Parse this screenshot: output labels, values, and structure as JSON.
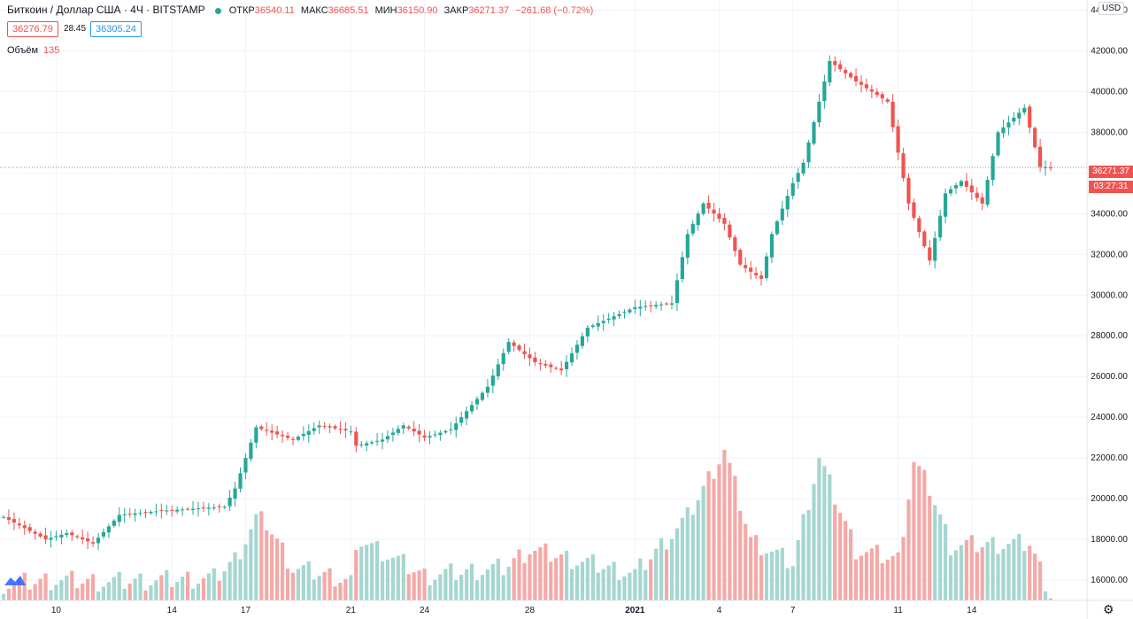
{
  "header": {
    "symbol_title": "Биткоин / Доллар США · 4Ч · BITSTAMP",
    "open_label": "ОТКР",
    "open_value": "36540.11",
    "high_label": "МАКС",
    "high_value": "36685.51",
    "low_label": "МИН",
    "low_value": "36150.90",
    "close_label": "ЗАКР",
    "close_value": "36271.37",
    "change_value": "−261.68 (−0.72%)",
    "bid": "36276.79",
    "spread": "28.45",
    "ask": "36305.24"
  },
  "volume_row": {
    "label": "Объём",
    "value": "135"
  },
  "price_scale": {
    "currency": "USD",
    "last_price": "36271.37",
    "countdown": "03:27:31"
  },
  "colors": {
    "up": "#26a69a",
    "down": "#ef5350",
    "up_vol": "#a5d6d0",
    "down_vol": "#f4a9a7"
  },
  "icons": {
    "settings": "gear-icon",
    "logo": "tradingview-logo-icon"
  },
  "chart_data": {
    "type": "candlestick",
    "title": "Биткоин / Доллар США · 4Ч · BITSTAMP",
    "ylim": [
      15000,
      44500
    ],
    "y_ticks": [
      "16000.00",
      "18000.00",
      "20000.00",
      "22000.00",
      "24000.00",
      "26000.00",
      "28000.00",
      "30000.00",
      "32000.00",
      "34000.00",
      "36000.00",
      "38000.00",
      "40000.00",
      "42000.00",
      "44000.00"
    ],
    "x_ticks": [
      "10",
      "14",
      "17",
      "21",
      "24",
      "28",
      "2021",
      "4",
      "7",
      "11",
      "14"
    ],
    "x_tick_index": [
      10,
      32,
      46,
      66,
      80,
      100,
      120,
      136,
      150,
      170,
      184
    ],
    "grid": true,
    "price_anchors": [
      [
        0,
        19100
      ],
      [
        8,
        18000
      ],
      [
        12,
        18300
      ],
      [
        17,
        17800
      ],
      [
        22,
        19200
      ],
      [
        30,
        19400
      ],
      [
        42,
        19600
      ],
      [
        44,
        20500
      ],
      [
        48,
        23500
      ],
      [
        55,
        22900
      ],
      [
        60,
        23600
      ],
      [
        66,
        23300
      ],
      [
        67,
        22600
      ],
      [
        72,
        22900
      ],
      [
        76,
        23600
      ],
      [
        80,
        23000
      ],
      [
        85,
        23400
      ],
      [
        92,
        25500
      ],
      [
        96,
        27700
      ],
      [
        101,
        26700
      ],
      [
        106,
        26300
      ],
      [
        111,
        28400
      ],
      [
        120,
        29400
      ],
      [
        127,
        29600
      ],
      [
        130,
        33000
      ],
      [
        133,
        34500
      ],
      [
        137,
        33500
      ],
      [
        140,
        31500
      ],
      [
        144,
        30800
      ],
      [
        146,
        33000
      ],
      [
        150,
        35500
      ],
      [
        152,
        36500
      ],
      [
        155,
        39500
      ],
      [
        157,
        41500
      ],
      [
        162,
        40500
      ],
      [
        168,
        39500
      ],
      [
        172,
        34500
      ],
      [
        176,
        31700
      ],
      [
        179,
        35000
      ],
      [
        182,
        35600
      ],
      [
        186,
        34500
      ],
      [
        189,
        38000
      ],
      [
        194,
        39200
      ],
      [
        197,
        36300
      ],
      [
        199,
        36271
      ]
    ],
    "volume_anchors": [
      [
        0,
        15800
      ],
      [
        10,
        16000
      ],
      [
        20,
        15900
      ],
      [
        40,
        16100
      ],
      [
        44,
        17000
      ],
      [
        48,
        19000
      ],
      [
        50,
        18800
      ],
      [
        55,
        16600
      ],
      [
        66,
        16000
      ],
      [
        68,
        18000
      ],
      [
        80,
        16200
      ],
      [
        95,
        16600
      ],
      [
        100,
        17500
      ],
      [
        120,
        16300
      ],
      [
        130,
        19100
      ],
      [
        137,
        22400
      ],
      [
        142,
        18000
      ],
      [
        150,
        16800
      ],
      [
        155,
        22000
      ],
      [
        162,
        17500
      ],
      [
        170,
        17000
      ],
      [
        173,
        21800
      ],
      [
        176,
        20500
      ],
      [
        180,
        17700
      ],
      [
        195,
        17800
      ],
      [
        199,
        15300
      ]
    ]
  }
}
